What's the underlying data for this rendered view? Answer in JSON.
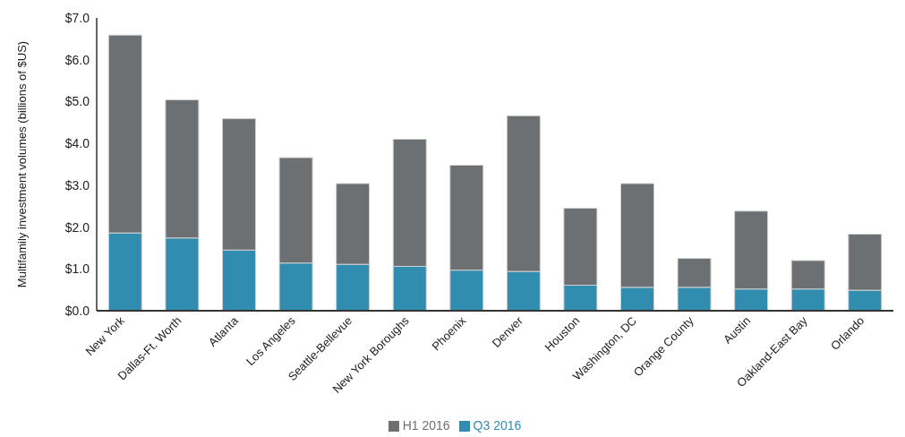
{
  "chart_data": {
    "type": "bar",
    "stacked": true,
    "ylabel": "Multifamily investment volumes (billions of $US)",
    "categories": [
      "New York",
      "Dallas-Ft. Worth",
      "Atlanta",
      "Los Angeles",
      "Seattle-Bellevue",
      "New York Boroughs",
      "Phoenix",
      "Denver",
      "Houston",
      "Washington, DC",
      "Orange County",
      "Austin",
      "Oakland-East Bay",
      "Orlando"
    ],
    "series": [
      {
        "name": "Q3 2016",
        "color": "#318db0",
        "values": [
          1.86,
          1.74,
          1.45,
          1.14,
          1.11,
          1.06,
          0.97,
          0.94,
          0.61,
          0.56,
          0.56,
          0.52,
          0.52,
          0.49
        ]
      },
      {
        "name": "H1 2016",
        "color": "#6d7073",
        "values": [
          4.73,
          3.3,
          3.14,
          2.52,
          1.93,
          3.04,
          2.51,
          3.72,
          1.84,
          2.48,
          0.69,
          1.86,
          0.68,
          1.34
        ]
      }
    ],
    "ylim": [
      0,
      7
    ],
    "yticks": [
      {
        "value": 0,
        "label": "$0.0"
      },
      {
        "value": 1,
        "label": "$1.0"
      },
      {
        "value": 2,
        "label": "$2.0"
      },
      {
        "value": 3,
        "label": "$3.0"
      },
      {
        "value": 4,
        "label": "$4.0"
      },
      {
        "value": 5,
        "label": "$5.0"
      },
      {
        "value": 6,
        "label": "$6.0"
      },
      {
        "value": 7,
        "label": "$7.0"
      }
    ],
    "grid": false,
    "legend": "bottom"
  }
}
